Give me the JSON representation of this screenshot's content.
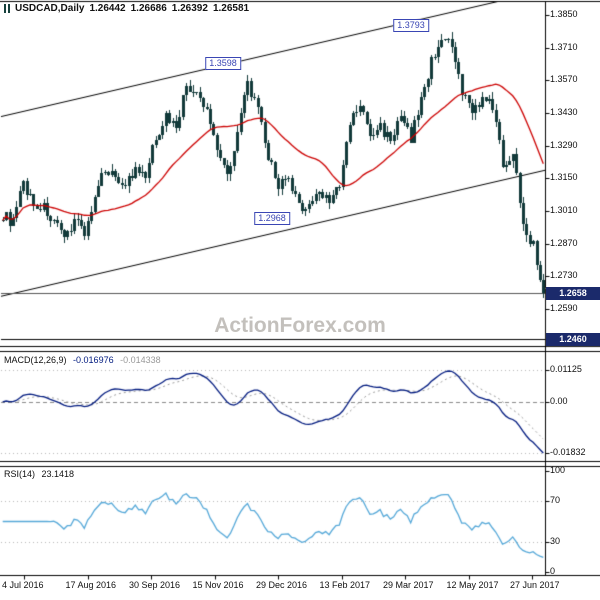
{
  "title": {
    "symbol": "USDCAD,Daily",
    "open": "1.26442",
    "high": "1.26686",
    "low": "1.26392",
    "close": "1.26581"
  },
  "watermark": "ActionForex.com",
  "colors": {
    "background": "#ffffff",
    "border": "#000000",
    "candle": "#123a3a",
    "ma_line": "#cc0000",
    "channel_line": "#000000",
    "last_price_line": "#555555",
    "support_line": "#000000",
    "macd_line": "#001a7f",
    "macd_signal": "#999999",
    "rsi_line": "#55a8d8",
    "level_line": "#b5b5b5",
    "annotation": "#3a46b4",
    "badge_bg": "#1b2a6b",
    "badge_text": "#ffffff",
    "watermark_color": "#c3c0bc"
  },
  "chart_data": [
    {
      "type": "candlestick",
      "name": "USDCAD Daily price",
      "x_labels": [
        "4 Jul 2016",
        "17 Aug 2016",
        "30 Sep 2016",
        "15 Nov 2016",
        "29 Dec 2016",
        "13 Feb 2017",
        "29 Mar 2017",
        "12 May 2017",
        "27 Jun 2017"
      ],
      "y_ticks": [
        "1.3850",
        "1.3710",
        "1.3570",
        "1.3430",
        "1.3290",
        "1.3150",
        "1.3010",
        "1.2870",
        "1.2730",
        "1.2590"
      ],
      "y_min": 1.2432,
      "y_max": 1.3906,
      "weekly_closes": [
        1.2995,
        1.296,
        1.313,
        1.304,
        1.3025,
        1.296,
        1.288,
        1.2985,
        1.292,
        1.3055,
        1.32,
        1.3155,
        1.313,
        1.318,
        1.315,
        1.333,
        1.3415,
        1.338,
        1.3545,
        1.3505,
        1.344,
        1.329,
        1.3165,
        1.3345,
        1.356,
        1.3435,
        1.324,
        1.3125,
        1.3135,
        1.3025,
        1.3035,
        1.309,
        1.3065,
        1.311,
        1.3385,
        1.3465,
        1.333,
        1.337,
        1.332,
        1.3405,
        1.3325,
        1.349,
        1.365,
        1.376,
        1.3705,
        1.351,
        1.345,
        1.348,
        1.3465,
        1.321,
        1.3255,
        1.2965,
        1.286,
        1.2658
      ],
      "bars_per_week": 3,
      "ma_period": 25,
      "channel": {
        "lower": {
          "p0": 1.2645,
          "p1": 1.3185
        },
        "upper": {
          "p0": 1.3415,
          "p1": 1.3955
        }
      },
      "horizontal_lines": [
        {
          "price": 1.2658,
          "role": "last-price"
        },
        {
          "price": 1.246,
          "role": "support"
        }
      ],
      "annotations": [
        {
          "label": "1.3793",
          "price": 1.3803,
          "xfrac": 0.755
        },
        {
          "label": "1.3598",
          "price": 1.364,
          "xfrac": 0.41
        },
        {
          "label": "1.2968",
          "price": 1.2975,
          "xfrac": 0.5
        }
      ],
      "last_price_badge": "1.2658",
      "support_badge": "1.2460"
    },
    {
      "type": "line",
      "name": "MACD(12,26,9)",
      "value_main": "-0.016976",
      "value_signal": "-0.014338",
      "y_min": -0.0215,
      "y_max": 0.0178,
      "y_ticks": [
        {
          "label": "0.01125",
          "value": 0.01125
        },
        {
          "label": "0.00",
          "value": 0
        },
        {
          "label": "-0.01832",
          "value": -0.01832
        }
      ]
    },
    {
      "type": "line",
      "name": "RSI(14)",
      "value": "23.1418",
      "y_min": 0,
      "y_max": 100,
      "y_ticks": [
        {
          "label": "100",
          "value": 100
        },
        {
          "label": "70",
          "value": 70
        },
        {
          "label": "30",
          "value": 30
        },
        {
          "label": "0",
          "value": 0
        }
      ],
      "levels": [
        70,
        30
      ]
    }
  ]
}
